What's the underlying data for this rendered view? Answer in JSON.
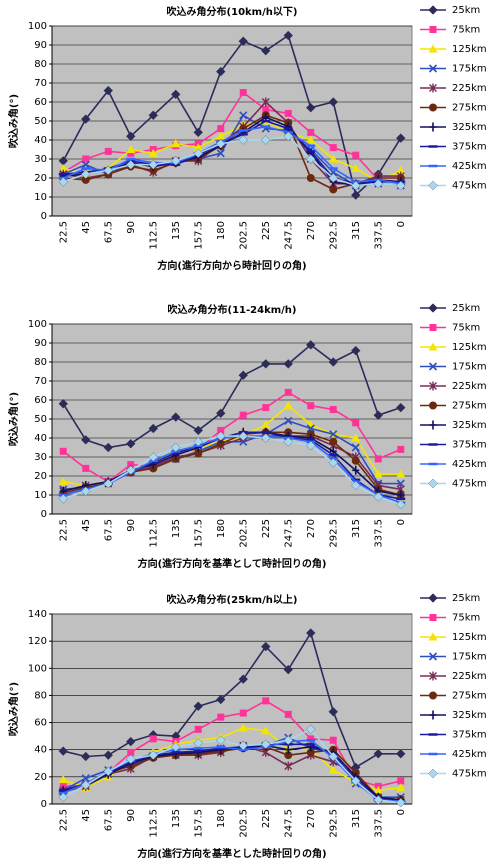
{
  "chart_data": [
    {
      "type": "line",
      "title": "吹込み角分布(10km/h以下)",
      "y_label": "吹込み角(°)",
      "x_label": "方向(進行方向から時計回りの角)",
      "categories": [
        "22.5",
        "45",
        "67.5",
        "90",
        "112.5",
        "135",
        "157.5",
        "180",
        "202.5",
        "225",
        "247.5",
        "270",
        "292.5",
        "315",
        "337.5",
        "0"
      ],
      "ylim": [
        0,
        100
      ],
      "yticks": [
        0,
        10,
        20,
        30,
        40,
        50,
        60,
        70,
        80,
        90,
        100
      ],
      "grid": true,
      "series": [
        {
          "name": "25km",
          "color": "#2b2b5e",
          "marker": "diamond",
          "values": [
            29,
            51,
            66,
            42,
            53,
            64,
            44,
            76,
            92,
            87,
            95,
            57,
            60,
            11,
            22,
            41
          ]
        },
        {
          "name": "75km",
          "color": "#ff3399",
          "marker": "square",
          "values": [
            23,
            30,
            34,
            33,
            35,
            37,
            38,
            46,
            65,
            56,
            54,
            44,
            36,
            32,
            19,
            18
          ]
        },
        {
          "name": "125km",
          "color": "#f2e600",
          "marker": "triangle",
          "values": [
            25,
            22,
            25,
            35,
            33,
            38,
            36,
            42,
            48,
            50,
            44,
            40,
            30,
            25,
            18,
            24
          ]
        },
        {
          "name": "175km",
          "color": "#2f4fbf",
          "marker": "x",
          "values": [
            22,
            27,
            22,
            28,
            26,
            29,
            30,
            33,
            53,
            46,
            45,
            35,
            23,
            16,
            17,
            16
          ]
        },
        {
          "name": "225km",
          "color": "#7a2a55",
          "marker": "star",
          "values": [
            22,
            20,
            22,
            27,
            23,
            29,
            29,
            38,
            47,
            60,
            49,
            30,
            17,
            17,
            21,
            21
          ]
        },
        {
          "name": "275km",
          "color": "#6b2a10",
          "marker": "circle",
          "values": [
            20,
            19,
            22,
            26,
            24,
            28,
            30,
            37,
            46,
            53,
            49,
            20,
            14,
            17,
            20,
            20
          ]
        },
        {
          "name": "325km",
          "color": "#101060",
          "marker": "plus",
          "values": [
            21,
            22,
            24,
            28,
            26,
            28,
            31,
            37,
            44,
            52,
            47,
            33,
            18,
            16,
            19,
            18
          ]
        },
        {
          "name": "375km",
          "color": "#1a1aa0",
          "marker": "dash",
          "values": [
            22,
            23,
            25,
            29,
            27,
            27,
            32,
            38,
            43,
            50,
            46,
            34,
            20,
            17,
            18,
            18
          ]
        },
        {
          "name": "425km",
          "color": "#3366ff",
          "marker": "dash",
          "values": [
            20,
            25,
            24,
            30,
            28,
            28,
            33,
            39,
            45,
            47,
            44,
            37,
            25,
            18,
            19,
            17
          ]
        },
        {
          "name": "475km",
          "color": "#a8d8f0",
          "marker": "diamond",
          "values": [
            18,
            22,
            24,
            27,
            27,
            29,
            33,
            38,
            40,
            40,
            42,
            30,
            20,
            16,
            17,
            16
          ]
        }
      ]
    },
    {
      "type": "line",
      "title": "吹込み角分布(11-24km/h)",
      "y_label": "吹込み角(°)",
      "x_label": "方向(進行方向を基準として時計回りの角)",
      "categories": [
        "22.5",
        "45",
        "67.5",
        "90",
        "112.5",
        "135",
        "157.5",
        "180",
        "202.5",
        "225",
        "247.5",
        "270",
        "292.5",
        "315",
        "337.5",
        "0"
      ],
      "ylim": [
        0,
        100
      ],
      "yticks": [
        0,
        10,
        20,
        30,
        40,
        50,
        60,
        70,
        80,
        90,
        100
      ],
      "grid": true,
      "series": [
        {
          "name": "25km",
          "color": "#2b2b5e",
          "marker": "diamond",
          "values": [
            58,
            39,
            35,
            37,
            45,
            51,
            44,
            53,
            73,
            79,
            79,
            89,
            80,
            86,
            52,
            56
          ]
        },
        {
          "name": "75km",
          "color": "#ff3399",
          "marker": "square",
          "values": [
            33,
            24,
            17,
            26,
            25,
            33,
            34,
            44,
            52,
            56,
            64,
            57,
            55,
            48,
            29,
            34
          ]
        },
        {
          "name": "125km",
          "color": "#f2e600",
          "marker": "triangle",
          "values": [
            17,
            15,
            16,
            23,
            27,
            31,
            35,
            38,
            41,
            47,
            57,
            47,
            42,
            40,
            21,
            21
          ]
        },
        {
          "name": "175km",
          "color": "#2f4fbf",
          "marker": "x",
          "values": [
            13,
            14,
            16,
            22,
            25,
            29,
            33,
            38,
            38,
            42,
            49,
            45,
            42,
            35,
            16,
            16
          ]
        },
        {
          "name": "225km",
          "color": "#7a2a55",
          "marker": "star",
          "values": [
            12,
            15,
            17,
            22,
            25,
            30,
            32,
            36,
            40,
            41,
            41,
            41,
            36,
            30,
            15,
            13
          ]
        },
        {
          "name": "275km",
          "color": "#6b2a10",
          "marker": "circle",
          "values": [
            11,
            14,
            16,
            22,
            24,
            29,
            32,
            37,
            42,
            43,
            43,
            42,
            38,
            28,
            13,
            10
          ]
        },
        {
          "name": "325km",
          "color": "#101060",
          "marker": "plus",
          "values": [
            12,
            15,
            17,
            23,
            26,
            31,
            35,
            40,
            43,
            43,
            41,
            40,
            33,
            23,
            12,
            10
          ]
        },
        {
          "name": "375km",
          "color": "#1a1aa0",
          "marker": "dash",
          "values": [
            10,
            13,
            16,
            22,
            27,
            32,
            36,
            40,
            43,
            43,
            40,
            39,
            31,
            18,
            10,
            8
          ]
        },
        {
          "name": "425km",
          "color": "#3366ff",
          "marker": "dash",
          "values": [
            10,
            13,
            16,
            22,
            28,
            33,
            36,
            40,
            41,
            41,
            40,
            38,
            29,
            17,
            10,
            6
          ]
        },
        {
          "name": "475km",
          "color": "#a8d8f0",
          "marker": "diamond",
          "values": [
            8,
            12,
            16,
            23,
            30,
            35,
            38,
            41,
            41,
            40,
            38,
            36,
            27,
            15,
            9,
            5
          ]
        }
      ]
    },
    {
      "type": "line",
      "title": "吹込み角分布(25km/h以上)",
      "y_label": "吹込み角(°)",
      "x_label": "方向(進行方向を基準とした時計回りの角)",
      "categories": [
        "22.5",
        "45",
        "67.5",
        "90",
        "112.5",
        "135",
        "157.5",
        "180",
        "202.5",
        "225",
        "247.5",
        "270",
        "292.5",
        "315",
        "337.5",
        "0"
      ],
      "ylim": [
        0,
        140
      ],
      "yticks": [
        0,
        20,
        40,
        60,
        80,
        100,
        120,
        140
      ],
      "grid": true,
      "series": [
        {
          "name": "25km",
          "color": "#2b2b5e",
          "marker": "diamond",
          "values": [
            39,
            35,
            36,
            46,
            51,
            50,
            72,
            77,
            92,
            116,
            99,
            126,
            68,
            27,
            37,
            37
          ]
        },
        {
          "name": "75km",
          "color": "#ff3399",
          "marker": "square",
          "values": [
            13,
            14,
            23,
            38,
            48,
            46,
            55,
            64,
            67,
            76,
            66,
            48,
            47,
            18,
            13,
            17
          ]
        },
        {
          "name": "125km",
          "color": "#f2e600",
          "marker": "triangle",
          "values": [
            18,
            12,
            20,
            30,
            38,
            44,
            47,
            49,
            56,
            54,
            41,
            40,
            25,
            16,
            10,
            12
          ]
        },
        {
          "name": "175km",
          "color": "#2f4fbf",
          "marker": "x",
          "values": [
            10,
            19,
            25,
            29,
            35,
            38,
            38,
            41,
            42,
            43,
            49,
            41,
            38,
            15,
            5,
            5
          ]
        },
        {
          "name": "225km",
          "color": "#7a2a55",
          "marker": "star",
          "values": [
            9,
            13,
            22,
            26,
            35,
            36,
            36,
            38,
            43,
            38,
            28,
            36,
            31,
            22,
            4,
            3
          ]
        },
        {
          "name": "275km",
          "color": "#6b2a10",
          "marker": "circle",
          "values": [
            9,
            14,
            23,
            28,
            34,
            36,
            37,
            39,
            41,
            42,
            36,
            38,
            40,
            23,
            5,
            3
          ]
        },
        {
          "name": "325km",
          "color": "#101060",
          "marker": "plus",
          "values": [
            10,
            14,
            22,
            30,
            35,
            37,
            38,
            40,
            42,
            43,
            40,
            42,
            38,
            20,
            5,
            3
          ]
        },
        {
          "name": "375km",
          "color": "#1a1aa0",
          "marker": "dash",
          "values": [
            10,
            15,
            23,
            31,
            36,
            38,
            39,
            41,
            42,
            44,
            44,
            44,
            36,
            18,
            4,
            2
          ]
        },
        {
          "name": "425km",
          "color": "#3366ff",
          "marker": "dash",
          "values": [
            8,
            15,
            24,
            32,
            37,
            40,
            41,
            42,
            40,
            42,
            46,
            47,
            34,
            16,
            3,
            2
          ]
        },
        {
          "name": "475km",
          "color": "#a8d8f0",
          "marker": "diamond",
          "values": [
            5,
            14,
            24,
            33,
            36,
            42,
            45,
            47,
            43,
            44,
            47,
            55,
            35,
            17,
            3,
            1
          ]
        }
      ]
    }
  ]
}
